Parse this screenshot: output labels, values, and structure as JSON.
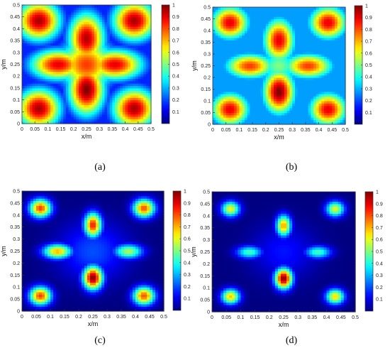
{
  "chart_data": [
    {
      "type": "heatmap",
      "panel_label": "(a)",
      "xlabel": "x/m",
      "ylabel": "y/m",
      "xlim": [
        0,
        0.5
      ],
      "ylim": [
        0,
        0.5
      ],
      "xticks": [
        "0",
        "0.05",
        "0.1",
        "0.15",
        "0.2",
        "0.25",
        "0.3",
        "0.35",
        "0.4",
        "0.45",
        "0.5"
      ],
      "yticks": [
        "0",
        "0.05",
        "0.1",
        "0.15",
        "0.2",
        "0.25",
        "0.3",
        "0.35",
        "0.4",
        "0.45",
        "0.5"
      ],
      "colorbar": {
        "min": 0,
        "max": 1,
        "ticks": [
          "0.1",
          "0.2",
          "0.3",
          "0.4",
          "0.5",
          "0.6",
          "0.7",
          "0.8",
          "0.9",
          "1"
        ],
        "colormap": "jet"
      },
      "background_level": 0.16,
      "hotspots": [
        {
          "x": 0.065,
          "y": 0.435,
          "value": 0.96,
          "rx": 0.085,
          "ry": 0.085
        },
        {
          "x": 0.435,
          "y": 0.435,
          "value": 0.96,
          "rx": 0.085,
          "ry": 0.085
        },
        {
          "x": 0.065,
          "y": 0.065,
          "value": 0.96,
          "rx": 0.085,
          "ry": 0.085
        },
        {
          "x": 0.435,
          "y": 0.065,
          "value": 0.96,
          "rx": 0.085,
          "ry": 0.085
        },
        {
          "x": 0.25,
          "y": 0.36,
          "value": 0.95,
          "rx": 0.07,
          "ry": 0.11
        },
        {
          "x": 0.25,
          "y": 0.145,
          "value": 1.0,
          "rx": 0.07,
          "ry": 0.11
        },
        {
          "x": 0.14,
          "y": 0.25,
          "value": 0.9,
          "rx": 0.11,
          "ry": 0.065
        },
        {
          "x": 0.36,
          "y": 0.25,
          "value": 0.9,
          "rx": 0.11,
          "ry": 0.065
        },
        {
          "x": 0.25,
          "y": 0.25,
          "value": 0.82,
          "rx": 0.11,
          "ry": 0.11
        }
      ]
    },
    {
      "type": "heatmap",
      "panel_label": "(b)",
      "xlabel": "x/m",
      "ylabel": "y/m",
      "xlim": [
        0,
        0.5
      ],
      "ylim": [
        0,
        0.5
      ],
      "xticks": [
        "0",
        "0.05",
        "0.1",
        "0.15",
        "0.2",
        "0.25",
        "0.3",
        "0.35",
        "0.4",
        "0.45",
        "0.5"
      ],
      "yticks": [
        "0",
        "0.05",
        "0.1",
        "0.15",
        "0.2",
        "0.25",
        "0.3",
        "0.35",
        "0.4",
        "0.45",
        "0.5"
      ],
      "colorbar": {
        "min": 0,
        "max": 1,
        "ticks": [
          "0.1",
          "0.2",
          "0.3",
          "0.4",
          "0.5",
          "0.6",
          "0.7",
          "0.8",
          "0.9",
          "1"
        ],
        "colormap": "jet"
      },
      "background_level": 0.28,
      "hotspots": [
        {
          "x": 0.065,
          "y": 0.435,
          "value": 0.9,
          "rx": 0.072,
          "ry": 0.072
        },
        {
          "x": 0.435,
          "y": 0.435,
          "value": 0.9,
          "rx": 0.072,
          "ry": 0.072
        },
        {
          "x": 0.065,
          "y": 0.065,
          "value": 0.9,
          "rx": 0.072,
          "ry": 0.072
        },
        {
          "x": 0.435,
          "y": 0.065,
          "value": 0.9,
          "rx": 0.072,
          "ry": 0.072
        },
        {
          "x": 0.25,
          "y": 0.36,
          "value": 0.9,
          "rx": 0.06,
          "ry": 0.095
        },
        {
          "x": 0.25,
          "y": 0.14,
          "value": 1.0,
          "rx": 0.06,
          "ry": 0.095
        },
        {
          "x": 0.14,
          "y": 0.25,
          "value": 0.82,
          "rx": 0.095,
          "ry": 0.055
        },
        {
          "x": 0.36,
          "y": 0.25,
          "value": 0.82,
          "rx": 0.095,
          "ry": 0.055
        },
        {
          "x": 0.25,
          "y": 0.25,
          "value": 0.5,
          "rx": 0.08,
          "ry": 0.08
        }
      ]
    },
    {
      "type": "heatmap",
      "panel_label": "(c)",
      "xlabel": "x/m",
      "ylabel": "y/m",
      "xlim": [
        0,
        0.5
      ],
      "ylim": [
        0,
        0.5
      ],
      "xticks": [
        "0",
        "0.05",
        "0.1",
        "0.15",
        "0.2",
        "0.25",
        "0.3",
        "0.35",
        "0.4",
        "0.45",
        "0.5"
      ],
      "yticks": [
        "0",
        "0.05",
        "0.1",
        "0.15",
        "0.2",
        "0.25",
        "0.3",
        "0.35",
        "0.4",
        "0.45",
        "0.5"
      ],
      "colorbar": {
        "min": 0,
        "max": 1,
        "ticks": [
          "0.1",
          "0.2",
          "0.3",
          "0.4",
          "0.5",
          "0.6",
          "0.7",
          "0.8",
          "0.9",
          "1"
        ],
        "colormap": "jet"
      },
      "background_level": 0.0,
      "hotspots": [
        {
          "x": 0.065,
          "y": 0.43,
          "value": 0.82,
          "rx": 0.038,
          "ry": 0.038
        },
        {
          "x": 0.43,
          "y": 0.43,
          "value": 0.8,
          "rx": 0.038,
          "ry": 0.038
        },
        {
          "x": 0.065,
          "y": 0.065,
          "value": 0.82,
          "rx": 0.038,
          "ry": 0.038
        },
        {
          "x": 0.43,
          "y": 0.065,
          "value": 0.8,
          "rx": 0.038,
          "ry": 0.038
        },
        {
          "x": 0.25,
          "y": 0.36,
          "value": 0.86,
          "rx": 0.03,
          "ry": 0.05
        },
        {
          "x": 0.25,
          "y": 0.14,
          "value": 1.0,
          "rx": 0.034,
          "ry": 0.048
        },
        {
          "x": 0.125,
          "y": 0.25,
          "value": 0.7,
          "rx": 0.05,
          "ry": 0.03
        },
        {
          "x": 0.375,
          "y": 0.25,
          "value": 0.55,
          "rx": 0.05,
          "ry": 0.03
        },
        {
          "x": 0.25,
          "y": 0.25,
          "value": 0.2,
          "rx": 0.12,
          "ry": 0.12
        }
      ]
    },
    {
      "type": "heatmap",
      "panel_label": "(d)",
      "xlabel": "x/m",
      "ylabel": "y/m",
      "xlim": [
        0,
        0.5
      ],
      "ylim": [
        0,
        0.5
      ],
      "xticks": [
        "0",
        "0.05",
        "0.1",
        "0.15",
        "0.2",
        "0.25",
        "0.3",
        "0.35",
        "0.4",
        "0.45",
        "0.5"
      ],
      "yticks": [
        "0",
        "0.05",
        "0.1",
        "0.15",
        "0.2",
        "0.25",
        "0.3",
        "0.35",
        "0.4",
        "0.45",
        "0.5"
      ],
      "colorbar": {
        "min": 0,
        "max": 1,
        "ticks": [
          "0.1",
          "0.2",
          "0.3",
          "0.4",
          "0.5",
          "0.6",
          "0.7",
          "0.8",
          "0.9",
          "1"
        ],
        "colormap": "jet"
      },
      "background_level": 0.0,
      "hotspots": [
        {
          "x": 0.065,
          "y": 0.43,
          "value": 0.62,
          "rx": 0.032,
          "ry": 0.032
        },
        {
          "x": 0.43,
          "y": 0.43,
          "value": 0.6,
          "rx": 0.032,
          "ry": 0.032
        },
        {
          "x": 0.065,
          "y": 0.065,
          "value": 0.68,
          "rx": 0.032,
          "ry": 0.032
        },
        {
          "x": 0.43,
          "y": 0.065,
          "value": 0.66,
          "rx": 0.032,
          "ry": 0.032
        },
        {
          "x": 0.25,
          "y": 0.36,
          "value": 0.72,
          "rx": 0.026,
          "ry": 0.044
        },
        {
          "x": 0.25,
          "y": 0.14,
          "value": 1.0,
          "rx": 0.03,
          "ry": 0.042
        },
        {
          "x": 0.13,
          "y": 0.25,
          "value": 0.45,
          "rx": 0.045,
          "ry": 0.026
        },
        {
          "x": 0.37,
          "y": 0.25,
          "value": 0.45,
          "rx": 0.045,
          "ry": 0.026
        },
        {
          "x": 0.25,
          "y": 0.25,
          "value": 0.14,
          "rx": 0.11,
          "ry": 0.11
        }
      ]
    }
  ]
}
